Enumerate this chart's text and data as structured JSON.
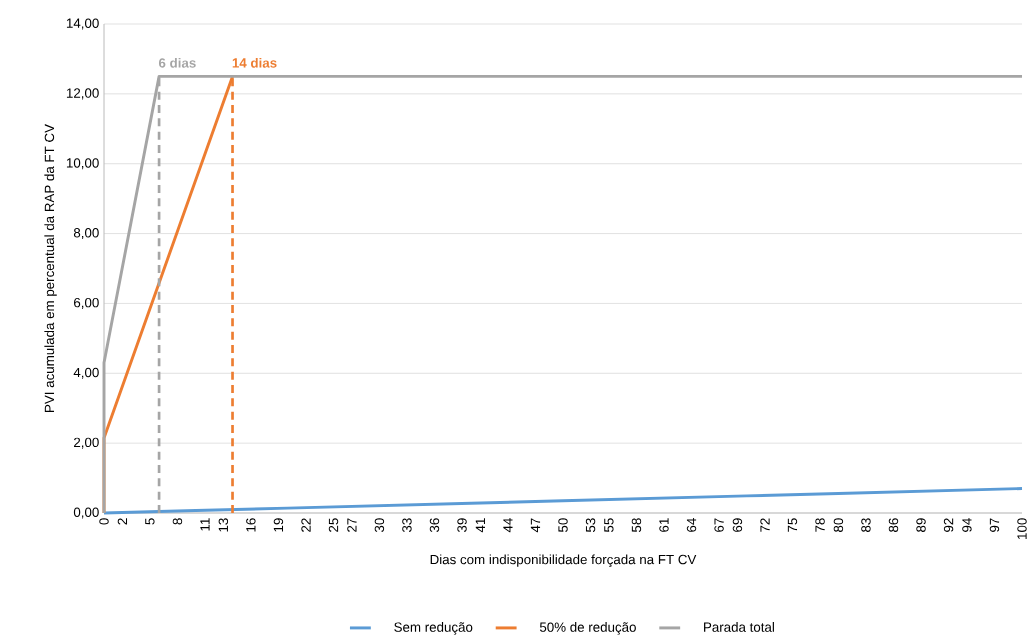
{
  "chart_data": {
    "type": "line",
    "xlabel": "Dias com indisponibilidade forçada na FT CV",
    "ylabel": "PVI acumulada em percentual da RAP da FT CV",
    "xlim": [
      0,
      100
    ],
    "xticks": [
      0,
      2,
      5,
      8,
      11,
      13,
      16,
      19,
      22,
      25,
      27,
      30,
      33,
      36,
      39,
      41,
      44,
      47,
      50,
      53,
      55,
      58,
      61,
      64,
      67,
      69,
      72,
      75,
      78,
      80,
      83,
      86,
      89,
      92,
      94,
      97,
      100
    ],
    "ylim": [
      0,
      14
    ],
    "yticks": [
      {
        "value": 0,
        "label": "0,00"
      },
      {
        "value": 2,
        "label": "2,00"
      },
      {
        "value": 4,
        "label": "4,00"
      },
      {
        "value": 6,
        "label": "6,00"
      },
      {
        "value": 8,
        "label": "8,00"
      },
      {
        "value": 10,
        "label": "10,00"
      },
      {
        "value": 12,
        "label": "12,00"
      },
      {
        "value": 14,
        "label": "14,00"
      }
    ],
    "grid": "y",
    "legend": "bottom",
    "marker": "none",
    "series": [
      {
        "name": "Sem redução",
        "color": "#5b9bd5",
        "x": [
          0,
          10,
          20,
          30,
          40,
          50,
          60,
          70,
          80,
          90,
          100
        ],
        "values": [
          0,
          0.07,
          0.14,
          0.21,
          0.28,
          0.35,
          0.42,
          0.49,
          0.56,
          0.63,
          0.7
        ]
      },
      {
        "name": "50% de redução",
        "color": "#ed7d31",
        "x": [
          0,
          0,
          14
        ],
        "values": [
          0,
          2.15,
          12.5
        ]
      },
      {
        "name": "Parada total",
        "color": "#a5a5a5",
        "x": [
          0,
          0,
          6,
          100
        ],
        "values": [
          0,
          4.3,
          12.5,
          12.5
        ]
      }
    ],
    "ref_lines": [
      {
        "axis": "x",
        "value": 6,
        "label": "6 dias",
        "color": "#a5a5a5",
        "line_style": "dashed"
      },
      {
        "axis": "x",
        "value": 14,
        "label": "14 dias",
        "color": "#ed7d31",
        "line_style": "dashed"
      }
    ]
  }
}
